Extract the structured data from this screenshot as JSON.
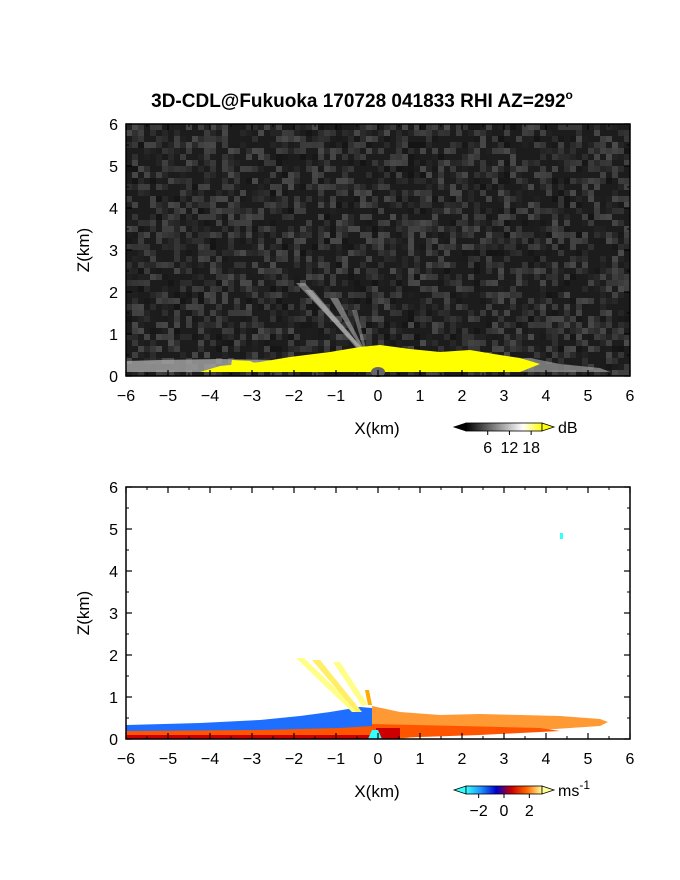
{
  "title": "3D-CDL@Fukuoka 170728 041833 RHI AZ=292",
  "title_superscript": "o",
  "chart_data": [
    {
      "type": "heatmap",
      "panel": "top",
      "xlabel": "X(km)",
      "ylabel": "Z(km)",
      "xlim": [
        -6,
        6
      ],
      "ylim": [
        0,
        6
      ],
      "xticks": [
        "-6",
        "-5",
        "-4",
        "-3",
        "-2",
        "-1",
        "0",
        "1",
        "2",
        "3",
        "4",
        "5",
        "6"
      ],
      "yticks": [
        "0",
        "1",
        "2",
        "3",
        "4",
        "5",
        "6"
      ],
      "colorbar": {
        "unit": "dB",
        "ticks": [
          "6",
          "12",
          "18"
        ],
        "range": [
          0,
          21
        ],
        "colors": [
          "#000000",
          "#555555",
          "#aaaaaa",
          "#ffffff",
          "#ffff00"
        ]
      }
    },
    {
      "type": "heatmap",
      "panel": "bottom",
      "xlabel": "X(km)",
      "ylabel": "Z(km)",
      "xlim": [
        -6,
        6
      ],
      "ylim": [
        0,
        6
      ],
      "xticks": [
        "-6",
        "-5",
        "-4",
        "-3",
        "-2",
        "-1",
        "0",
        "1",
        "2",
        "3",
        "4",
        "5",
        "6"
      ],
      "yticks": [
        "0",
        "1",
        "2",
        "3",
        "4",
        "5",
        "6"
      ],
      "colorbar": {
        "unit": "ms",
        "unit_superscript": "-1",
        "ticks": [
          "-2",
          "0",
          "2"
        ],
        "range": [
          -3,
          3
        ],
        "colors": [
          "#33ffff",
          "#1e90ff",
          "#0000cc",
          "#cc0000",
          "#ff6600",
          "#ffff99"
        ]
      }
    }
  ]
}
